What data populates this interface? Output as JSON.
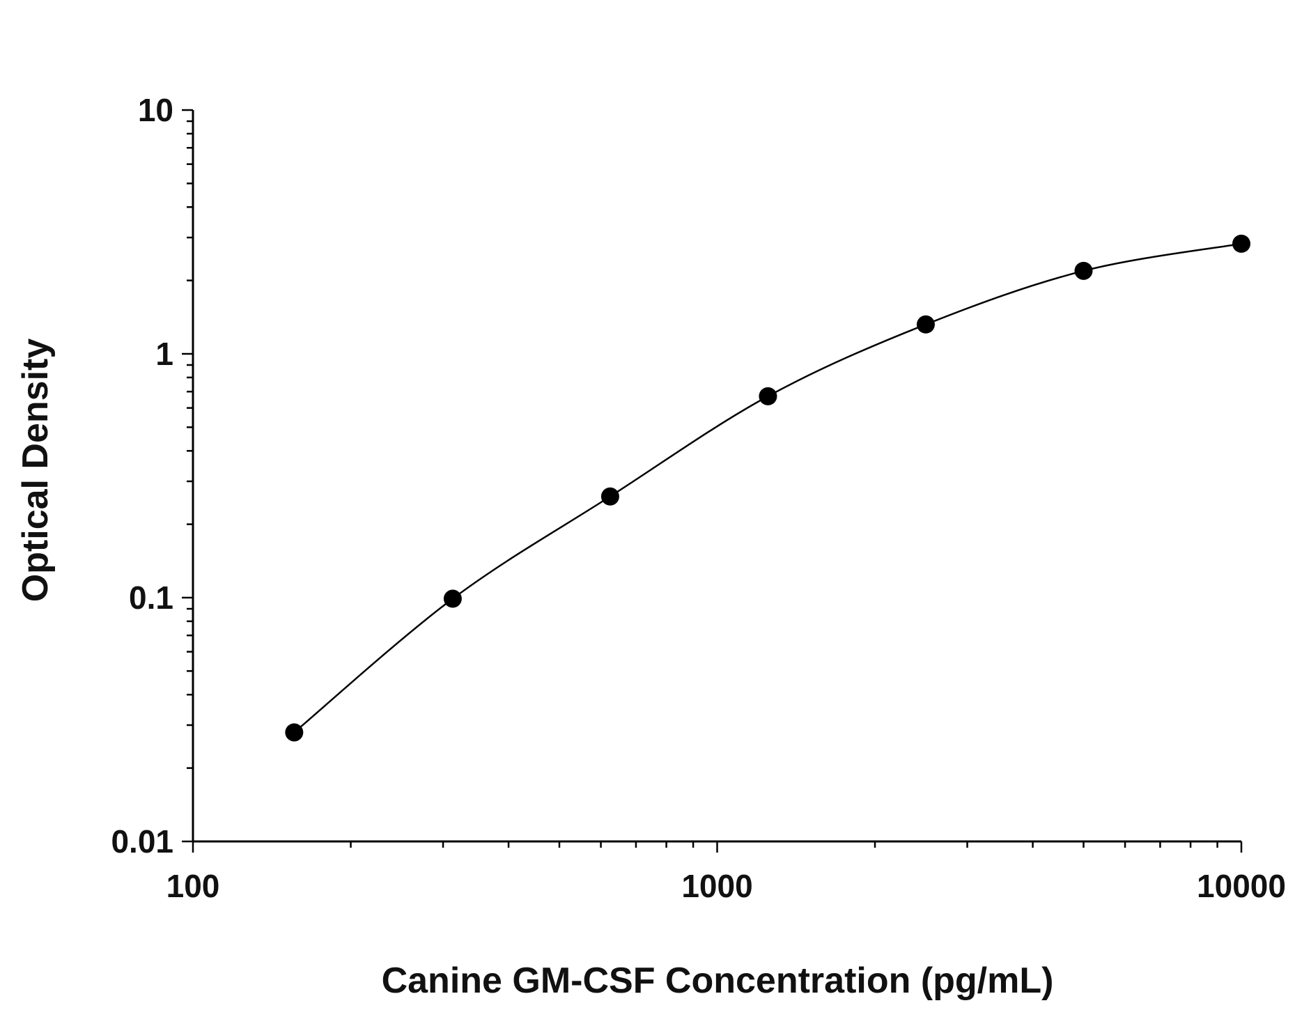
{
  "chart_data": {
    "type": "scatter",
    "title": "",
    "xlabel": "Canine GM-CSF Concentration (pg/mL)",
    "ylabel": "Optical Density",
    "x_scale": "log",
    "y_scale": "log",
    "xlim": [
      100,
      10000
    ],
    "ylim": [
      0.01,
      10
    ],
    "x_ticks": [
      100,
      1000,
      10000
    ],
    "x_tick_labels": [
      "100",
      "1000",
      "10000"
    ],
    "y_ticks": [
      0.01,
      0.1,
      1,
      10
    ],
    "y_tick_labels": [
      "0.01",
      "0.1",
      "1",
      "10"
    ],
    "grid": false,
    "legend": "none",
    "fit_curve": true,
    "series": [
      {
        "x": [
          156,
          313,
          625,
          1250,
          2500,
          5000,
          10000
        ],
        "y": [
          0.028,
          0.099,
          0.26,
          0.67,
          1.32,
          2.19,
          2.83
        ]
      }
    ],
    "colors": {
      "points": "#000000",
      "curve": "#000000",
      "axes": "#000000"
    }
  }
}
